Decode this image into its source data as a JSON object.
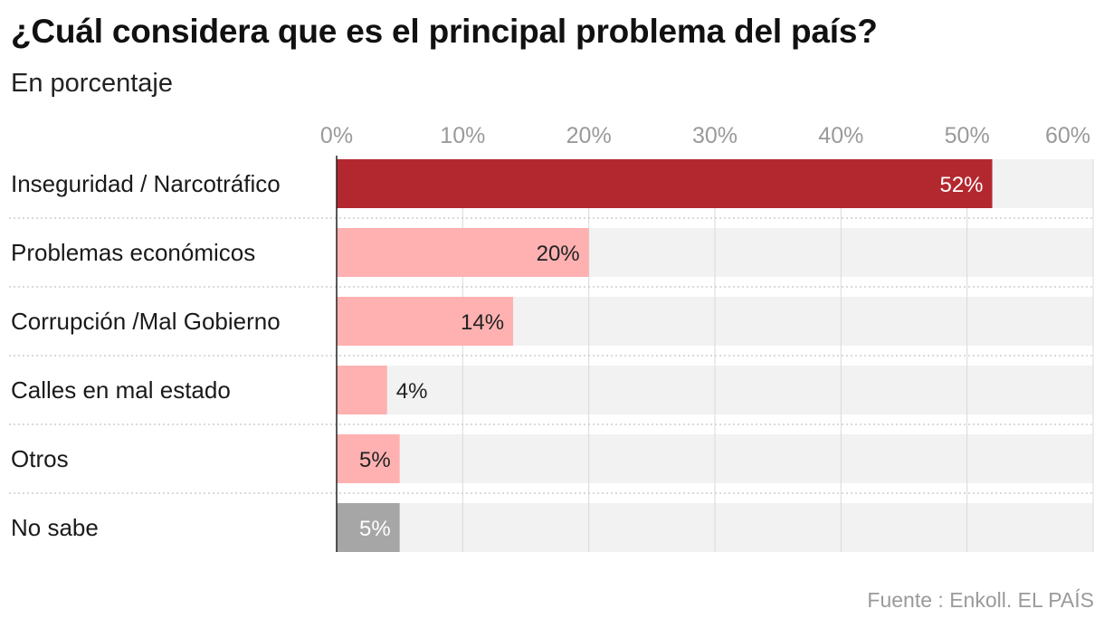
{
  "title": "¿Cuál considera que es el principal problema del país?",
  "subtitle": "En porcentaje",
  "source": "Fuente : Enkoll. EL PAÍS",
  "chart_data": {
    "type": "bar",
    "orientation": "horizontal",
    "title": "¿Cuál considera que es el principal problema del país?",
    "subtitle": "En porcentaje",
    "xlabel": "",
    "ylabel": "",
    "xlim": [
      0,
      60
    ],
    "x_ticks": [
      0,
      10,
      20,
      30,
      40,
      50,
      60
    ],
    "x_tick_labels": [
      "0%",
      "10%",
      "20%",
      "30%",
      "40%",
      "50%",
      "60%"
    ],
    "categories": [
      "Inseguridad / Narcotráfico",
      "Problemas económicos",
      "Corrupción /Mal Gobierno",
      "Calles en mal estado",
      "Otros",
      "No sabe"
    ],
    "values": [
      52,
      20,
      14,
      4,
      5,
      5
    ],
    "value_labels": [
      "52%",
      "20%",
      "14%",
      "4%",
      "5%",
      "5%"
    ],
    "bar_colors": [
      "#b3282f",
      "#ffb1b1",
      "#ffb1b1",
      "#ffb1b1",
      "#ffb1b1",
      "#a6a6a6"
    ],
    "label_colors": [
      "#ffffff",
      "#222222",
      "#222222",
      "#222222",
      "#222222",
      "#ffffff"
    ],
    "track_color": "#f2f2f2",
    "grid": true
  }
}
